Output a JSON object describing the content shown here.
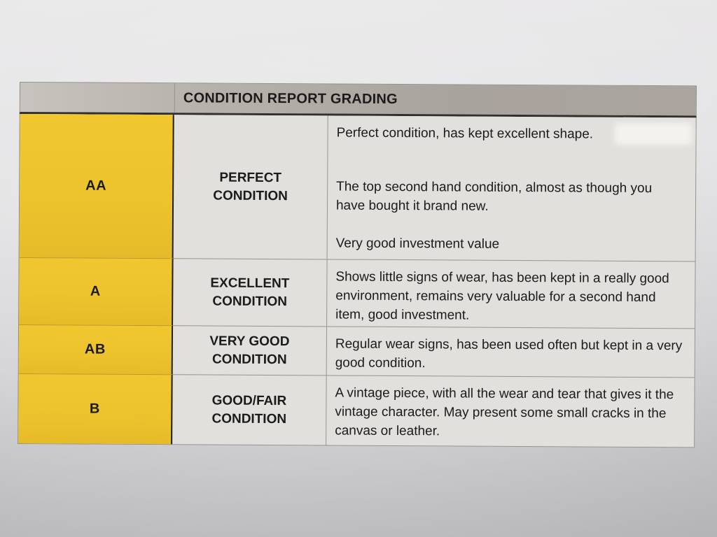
{
  "document": {
    "title": "CONDITION REPORT GRADING",
    "rows": [
      {
        "grade": "AA",
        "condition": "PERFECT CONDITION",
        "description_paragraphs": [
          "Perfect condition, has kept excellent shape.",
          "The top second hand condition, almost as though you have bought it brand new.",
          "Very good investment value"
        ]
      },
      {
        "grade": "A",
        "condition": "EXCELLENT CONDITION",
        "description_paragraphs": [
          "Shows little signs of wear, has been kept in a really good environment, remains very valuable for a second hand item, good investment."
        ]
      },
      {
        "grade": "AB",
        "condition": "VERY GOOD CONDITION",
        "description_paragraphs": [
          "Regular wear signs, has been used often but kept in a very good condition."
        ]
      },
      {
        "grade": "B",
        "condition": "GOOD/FAIR CONDITION",
        "description_paragraphs": [
          "A vintage piece, with all the wear and tear that gives it the vintage character. May present some small cracks in the canvas or leather."
        ]
      }
    ],
    "colors": {
      "grade_cell_yellow": "#ecc32d",
      "header_gray": "#aba49e",
      "body_gray": "#e1e0dd",
      "ink": "#1b1b1b",
      "paper_top": "#eae9ea",
      "paper_bottom": "#c3c3c6"
    }
  }
}
